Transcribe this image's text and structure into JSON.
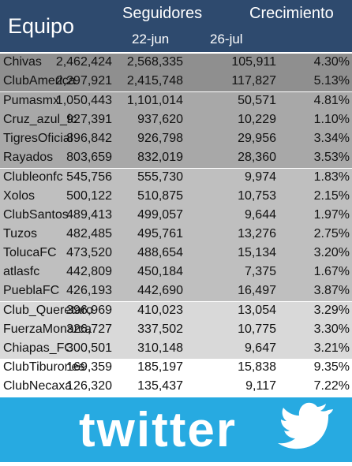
{
  "header": {
    "equipo": "Equipo",
    "seguidores": "Seguidores",
    "crecimiento": "Crecimiento",
    "date1": "22-jun",
    "date2": "26-jul"
  },
  "rows": [
    {
      "team": "Chivas",
      "jun": "2,462,424",
      "jul": "2,568,335",
      "growth": "105,911",
      "pct": "4.30%"
    },
    {
      "team": "ClubAmerica",
      "jun": "2,297,921",
      "jul": "2,415,748",
      "growth": "117,827",
      "pct": "5.13%"
    },
    {
      "team": "Pumasmx",
      "jun": "1,050,443",
      "jul": "1,101,014",
      "growth": "50,571",
      "pct": "4.81%"
    },
    {
      "team": "Cruz_azul_fc",
      "jun": "927,391",
      "jul": "937,620",
      "growth": "10,229",
      "pct": "1.10%"
    },
    {
      "team": "TigresOficial",
      "jun": "896,842",
      "jul": "926,798",
      "growth": "29,956",
      "pct": "3.34%"
    },
    {
      "team": "Rayados",
      "jun": "803,659",
      "jul": "832,019",
      "growth": "28,360",
      "pct": "3.53%"
    },
    {
      "team": "Clubleonfc",
      "jun": "545,756",
      "jul": "555,730",
      "growth": "9,974",
      "pct": "1.83%"
    },
    {
      "team": "Xolos",
      "jun": "500,122",
      "jul": "510,875",
      "growth": "10,753",
      "pct": "2.15%"
    },
    {
      "team": "ClubSantos",
      "jun": "489,413",
      "jul": "499,057",
      "growth": "9,644",
      "pct": "1.97%"
    },
    {
      "team": "Tuzos",
      "jun": "482,485",
      "jul": "495,761",
      "growth": "13,276",
      "pct": "2.75%"
    },
    {
      "team": "TolucaFC",
      "jun": "473,520",
      "jul": "488,654",
      "growth": "15,134",
      "pct": "3.20%"
    },
    {
      "team": "atlasfc",
      "jun": "442,809",
      "jul": "450,184",
      "growth": "7,375",
      "pct": "1.67%"
    },
    {
      "team": "PueblaFC",
      "jun": "426,193",
      "jul": "442,690",
      "growth": "16,497",
      "pct": "3.87%"
    },
    {
      "team": "Club_Queretaro",
      "jun": "396,969",
      "jul": "410,023",
      "growth": "13,054",
      "pct": "3.29%"
    },
    {
      "team": "FuerzaMonarca",
      "jun": "326,727",
      "jul": "337,502",
      "growth": "10,775",
      "pct": "3.30%"
    },
    {
      "team": "Chiapas_FC",
      "jun": "300,501",
      "jul": "310,148",
      "growth": "9,647",
      "pct": "3.21%"
    },
    {
      "team": "ClubTiburones",
      "jun": "169,359",
      "jul": "185,197",
      "growth": "15,838",
      "pct": "9.35%"
    },
    {
      "team": "ClubNecaxa",
      "jun": "126,320",
      "jul": "135,437",
      "growth": "9,117",
      "pct": "7.22%"
    }
  ],
  "logo_text": "twitter",
  "colors": {
    "header_bg": "#2e4a6e",
    "twitter_blue": "#27aae1",
    "tier_1": "#8f8f8f",
    "tier_2": "#a8a8a8",
    "tier_3": "#bfbfbf",
    "tier_4": "#d9d9d9",
    "tier_5": "#ffffff"
  }
}
